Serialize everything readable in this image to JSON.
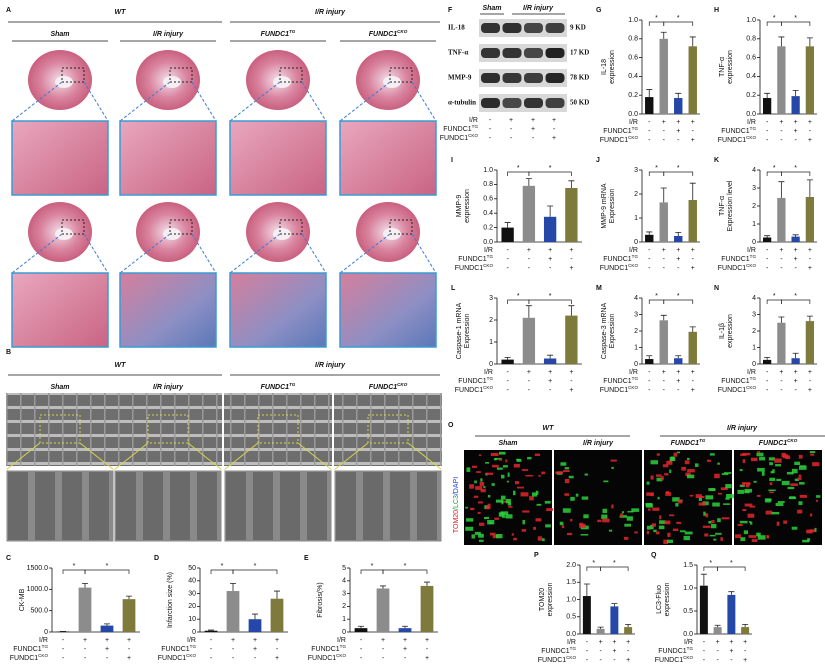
{
  "panel_a": {
    "label": "A",
    "groups": [
      "WT",
      "I/R injury"
    ],
    "columns": [
      "Sham",
      "I/R  injury",
      {
        "base": "FUNDC1",
        "sup": "TG"
      },
      {
        "base": "FUNDC1",
        "sup": "CKO"
      }
    ]
  },
  "panel_b": {
    "label": "B",
    "groups": [
      "WT",
      "I/R injury"
    ],
    "columns": [
      "Sham",
      "I/R  injury",
      {
        "base": "FUNDC1",
        "sup": "TG"
      },
      {
        "base": "FUNDC1",
        "sup": "CKO"
      }
    ]
  },
  "panel_f": {
    "label": "F",
    "header": [
      "Sham",
      "I/R  injury"
    ],
    "proteins": [
      "IL-18",
      "TNF-α",
      "MMP-9",
      "α-tubulin"
    ],
    "sizes": [
      "9 KD",
      "17 KD",
      "78 KD",
      "50 KD"
    ]
  },
  "panel_o": {
    "label": "O",
    "groups": [
      "WT",
      "I/R injury"
    ],
    "columns": [
      "Sham",
      "I/R  injury",
      {
        "base": "FUNDC1",
        "sup": "TG"
      },
      {
        "base": "FUNDC1",
        "sup": "CKO"
      }
    ],
    "stain": [
      "TOM20",
      "/LC3",
      "/DAPI"
    ]
  },
  "conditions": [
    {
      "label": "I/R",
      "signs": [
        "-",
        "+",
        "+",
        "+"
      ]
    },
    {
      "label": {
        "base": "FUNDC1",
        "sup": "TG"
      },
      "signs": [
        "-",
        "-",
        "+",
        "-"
      ]
    },
    {
      "label": {
        "base": "FUNDC1",
        "sup": "CKO"
      },
      "signs": [
        "-",
        "-",
        "-",
        "+"
      ]
    }
  ],
  "chart_data": [
    {
      "type": "bar",
      "label": "G",
      "ylabel": [
        "IL-18",
        "expression"
      ],
      "ylim": [
        0,
        1
      ],
      "yticks": [
        {
          "value": 0,
          "label": "0.0"
        },
        0.2,
        0.4,
        0.6,
        0.8,
        {
          "value": 1,
          "label": "1.0"
        }
      ],
      "values": [
        0.18,
        0.8,
        0.17,
        0.72
      ],
      "errors": [
        0.08,
        0.07,
        0.05,
        0.1
      ],
      "colors": [
        "#111111",
        "#8c8c8c",
        "#2547a8",
        "#7e7a3c"
      ],
      "stars": [
        "*",
        "*"
      ]
    },
    {
      "type": "bar",
      "label": "H",
      "ylabel": [
        "TNF-α",
        "expression"
      ],
      "ylim": [
        0,
        1
      ],
      "yticks": [
        {
          "value": 0,
          "label": "0.0"
        },
        0.2,
        0.4,
        0.6,
        0.8,
        {
          "value": 1,
          "label": "1.0"
        }
      ],
      "values": [
        0.17,
        0.72,
        0.19,
        0.72
      ],
      "errors": [
        0.05,
        0.1,
        0.06,
        0.09
      ],
      "colors": [
        "#111111",
        "#8c8c8c",
        "#2547a8",
        "#7e7a3c"
      ],
      "stars": [
        "*",
        "*"
      ]
    },
    {
      "type": "bar",
      "label": "I",
      "ylabel": [
        "MMP-9",
        "expression"
      ],
      "ylim": [
        0,
        1
      ],
      "yticks": [
        {
          "value": 0,
          "label": "0.0"
        },
        0.2,
        0.4,
        0.6,
        0.8,
        {
          "value": 1,
          "label": "1.0"
        }
      ],
      "values": [
        0.2,
        0.78,
        0.35,
        0.75
      ],
      "errors": [
        0.07,
        0.1,
        0.15,
        0.1
      ],
      "colors": [
        "#111111",
        "#8c8c8c",
        "#2547a8",
        "#7e7a3c"
      ],
      "stars": [
        "*",
        "*"
      ]
    },
    {
      "type": "bar",
      "label": "J",
      "ylabel": [
        "MMP-9 mRNA",
        "Expression"
      ],
      "ylim": [
        0,
        3
      ],
      "yticks": [
        0,
        1,
        2,
        3
      ],
      "values": [
        0.3,
        1.65,
        0.25,
        1.75
      ],
      "errors": [
        0.12,
        0.6,
        0.15,
        0.7
      ],
      "colors": [
        "#111111",
        "#8c8c8c",
        "#2547a8",
        "#7e7a3c"
      ],
      "stars": [
        "*",
        "*"
      ]
    },
    {
      "type": "bar",
      "label": "K",
      "ylabel": [
        "TNF-α",
        "Expression level"
      ],
      "ylim": [
        0,
        4
      ],
      "yticks": [
        0,
        1,
        2,
        3,
        4
      ],
      "values": [
        0.25,
        2.45,
        0.3,
        2.5
      ],
      "errors": [
        0.1,
        0.9,
        0.1,
        0.95
      ],
      "colors": [
        "#111111",
        "#8c8c8c",
        "#2547a8",
        "#7e7a3c"
      ],
      "stars": [
        "*",
        "*"
      ]
    },
    {
      "type": "bar",
      "label": "L",
      "ylabel": [
        "Caspase-1 mRNA",
        "Expression"
      ],
      "ylim": [
        0,
        3
      ],
      "yticks": [
        0,
        1,
        2,
        3
      ],
      "values": [
        0.2,
        2.1,
        0.25,
        2.2
      ],
      "errors": [
        0.1,
        0.55,
        0.15,
        0.45
      ],
      "colors": [
        "#111111",
        "#8c8c8c",
        "#2547a8",
        "#7e7a3c"
      ],
      "stars": [
        "*",
        "*"
      ]
    },
    {
      "type": "bar",
      "label": "M",
      "ylabel": [
        "Caspase-3 mRNA",
        "Expression"
      ],
      "ylim": [
        0,
        4
      ],
      "yticks": [
        0,
        1,
        2,
        3,
        4
      ],
      "values": [
        0.3,
        2.65,
        0.35,
        1.95
      ],
      "errors": [
        0.2,
        0.3,
        0.15,
        0.3
      ],
      "colors": [
        "#111111",
        "#8c8c8c",
        "#2547a8",
        "#7e7a3c"
      ],
      "stars": [
        "*",
        "*"
      ]
    },
    {
      "type": "bar",
      "label": "N",
      "ylabel": [
        "IL-1β",
        "expression"
      ],
      "ylim": [
        0,
        4
      ],
      "yticks": [
        0,
        1,
        2,
        3,
        4
      ],
      "values": [
        0.25,
        2.5,
        0.35,
        2.6
      ],
      "errors": [
        0.15,
        0.35,
        0.3,
        0.3
      ],
      "colors": [
        "#111111",
        "#8c8c8c",
        "#2547a8",
        "#7e7a3c"
      ],
      "stars": [
        "*",
        "*"
      ]
    },
    {
      "type": "bar",
      "label": "C",
      "ylabel": [
        "CK-MB"
      ],
      "ylim": [
        0,
        1500
      ],
      "yticks": [
        0,
        {
          "value": 500,
          "label": "500.0"
        },
        {
          "value": 1000,
          "label": "1000.0"
        },
        {
          "value": 1500,
          "label": "1500.0"
        }
      ],
      "values": [
        10,
        1040,
        150,
        770
      ],
      "errors": [
        5,
        100,
        40,
        70
      ],
      "colors": [
        "#111111",
        "#8c8c8c",
        "#2547a8",
        "#7e7a3c"
      ],
      "stars": [
        "*",
        "*"
      ]
    },
    {
      "type": "bar",
      "label": "D",
      "ylabel": [
        "Infarction size (%)"
      ],
      "ylim": [
        0,
        50
      ],
      "yticks": [
        0,
        10,
        20,
        30,
        40,
        50
      ],
      "values": [
        1,
        32,
        10,
        26
      ],
      "errors": [
        0.5,
        6,
        4,
        6
      ],
      "colors": [
        "#111111",
        "#8c8c8c",
        "#2547a8",
        "#7e7a3c"
      ],
      "stars": [
        "*",
        "*"
      ]
    },
    {
      "type": "bar",
      "label": "E",
      "ylabel": [
        "Fibrosis(%)"
      ],
      "ylim": [
        0,
        5
      ],
      "yticks": [
        0,
        1,
        2,
        3,
        4,
        5
      ],
      "values": [
        0.3,
        3.4,
        0.3,
        3.6
      ],
      "errors": [
        0.15,
        0.2,
        0.15,
        0.3
      ],
      "colors": [
        "#111111",
        "#8c8c8c",
        "#2547a8",
        "#7e7a3c"
      ],
      "stars": [
        "*",
        "*"
      ]
    },
    {
      "type": "bar",
      "label": "P",
      "ylabel": [
        "TOM20",
        "expression"
      ],
      "ylim": [
        0,
        2
      ],
      "yticks": [
        {
          "value": 0,
          "label": "0.0"
        },
        0.5,
        {
          "value": 1,
          "label": "1.0"
        },
        1.5,
        {
          "value": 2,
          "label": "2.0"
        }
      ],
      "values": [
        1.1,
        0.15,
        0.8,
        0.2
      ],
      "errors": [
        0.35,
        0.05,
        0.08,
        0.08
      ],
      "colors": [
        "#111111",
        "#8c8c8c",
        "#2547a8",
        "#7e7a3c"
      ],
      "stars": [
        "*",
        "*"
      ]
    },
    {
      "type": "bar",
      "label": "Q",
      "ylabel": [
        "LC3-Fluo",
        "expression"
      ],
      "ylim": [
        0,
        1.5
      ],
      "yticks": [
        {
          "value": 0,
          "label": "0.0"
        },
        0.5,
        {
          "value": 1,
          "label": "1.0"
        },
        1.5
      ],
      "values": [
        1.05,
        0.15,
        0.85,
        0.15
      ],
      "errors": [
        0.25,
        0.04,
        0.07,
        0.06
      ],
      "colors": [
        "#111111",
        "#8c8c8c",
        "#2547a8",
        "#7e7a3c"
      ],
      "stars": [
        "*",
        "*"
      ]
    }
  ]
}
